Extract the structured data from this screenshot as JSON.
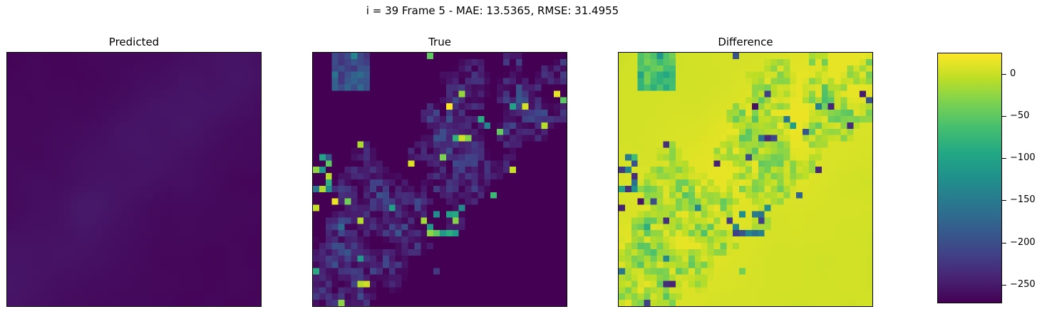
{
  "figure": {
    "suptitle": "i = 39 Frame 5 - MAE: 13.5365, RMSE: 31.4955"
  },
  "chart_data": [
    {
      "type": "heatmap",
      "title": "Predicted",
      "grid_size": [
        40,
        40
      ],
      "colormap": "viridis",
      "color_range": [
        0,
        270
      ],
      "description_of_values": "smooth low-magnitude field, brighter diagonal band from lower-left to upper-right",
      "values_range": [
        2,
        18
      ]
    },
    {
      "type": "heatmap",
      "title": "True",
      "grid_size": [
        40,
        40
      ],
      "colormap": "viridis",
      "color_range": [
        0,
        270
      ],
      "values_range": [
        0,
        270
      ]
    },
    {
      "type": "heatmap",
      "title": "Difference",
      "grid_size": [
        40,
        40
      ],
      "colormap": "viridis",
      "color_range": [
        -270,
        25
      ],
      "values_range": [
        -270,
        25
      ]
    }
  ],
  "colorbar": {
    "min": -272,
    "max": 25,
    "ticks": [
      {
        "value": 0,
        "label": "0"
      },
      {
        "value": -50,
        "label": "−50"
      },
      {
        "value": -100,
        "label": "−100"
      },
      {
        "value": -150,
        "label": "−150"
      },
      {
        "value": -200,
        "label": "−200"
      },
      {
        "value": -250,
        "label": "−250"
      }
    ]
  }
}
